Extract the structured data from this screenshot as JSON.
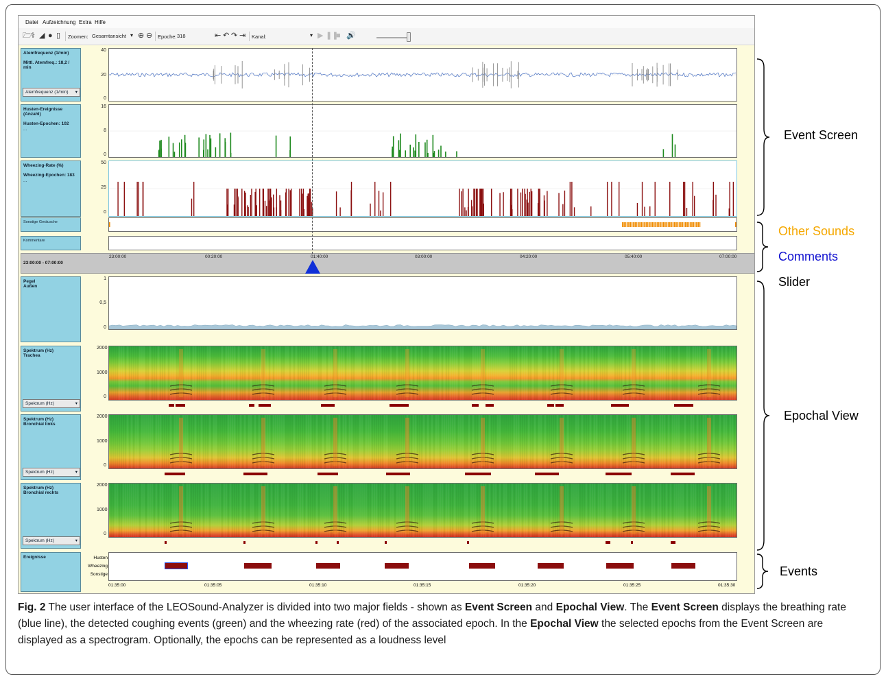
{
  "app": {
    "menu": [
      "Datei",
      "Aufzeichnung",
      "Extra",
      "Hilfe"
    ],
    "toolbar": {
      "zoom_label": "Zoomen:",
      "zoom_value": "Gesamtansicht",
      "epoch_label": "Epoche:",
      "epoch_value": "318",
      "channel_label": "Kanal:",
      "channel_value": ""
    }
  },
  "event_screen": {
    "respiration": {
      "title": "Atemfrequenz (1/min)",
      "stat": "Mittl. Atemfreq.: 18,2 / min",
      "select": "Atemfrequenz (1/min)",
      "yticks": [
        "40",
        "20",
        "0"
      ],
      "color": "#4a72c4"
    },
    "cough": {
      "title": "Husten-Ereignisse (Anzahl)",
      "stat": "Husten-Epochen: 102",
      "dots": "...",
      "yticks": [
        "16",
        "8",
        "0"
      ],
      "color": "#1f8a1f"
    },
    "wheezing": {
      "title": "Wheezing-Rate (%)",
      "stat": "Wheezing-Epochen: 183",
      "dots": "...",
      "yticks": [
        "50",
        "25",
        "0"
      ],
      "color": "#8b1010"
    },
    "other_sounds": {
      "title": "Sonstige Geräusche",
      "color": "#f08c00"
    },
    "comments": {
      "title": "Kommentare"
    }
  },
  "slider": {
    "range": "23:00:00 - 07:00:00",
    "times": [
      "23:00:00",
      "00:20:00",
      "01:40:00",
      "03:00:00",
      "04:20:00",
      "05:40:00",
      "07:00:00"
    ],
    "cursor_color": "#1030d8"
  },
  "epochal_view": {
    "level": {
      "title": "Pegel",
      "subtitle": "Außen",
      "yticks": [
        "1",
        "0,5",
        "0"
      ]
    },
    "spectra": [
      {
        "title": "Spektrum (Hz)",
        "subtitle": "Trachea",
        "select": "Spektrum (Hz)",
        "yticks": [
          "2000",
          "1000",
          "0"
        ]
      },
      {
        "title": "Spektrum (Hz)",
        "subtitle": "Bronchial links",
        "select": "Spektrum (Hz)",
        "yticks": [
          "2000",
          "1000",
          "0"
        ]
      },
      {
        "title": "Spektrum (Hz)",
        "subtitle": "Bronchial rechts",
        "select": "Spektrum (Hz)",
        "yticks": [
          "2000",
          "1000",
          "0"
        ]
      }
    ],
    "events": {
      "title": "Ereignisse",
      "rows": [
        "Husten",
        "Wheezing",
        "Sonstige"
      ],
      "times": [
        "01:35:00",
        "01:35:05",
        "01:35:10",
        "01:35:15",
        "01:35:20",
        "01:35:25",
        "01:35:30"
      ]
    }
  },
  "annotations": {
    "event_screen": "Event Screen",
    "other_sounds": "Other Sounds",
    "comments": "Comments",
    "slider": "Slider",
    "epochal_view": "Epochal View",
    "events": "Events",
    "colors": {
      "other_sounds": "#f5a800",
      "comments": "#1010d0",
      "default": "#000000"
    }
  },
  "caption": {
    "fig": "Fig. 2",
    "t1": " The user interface of the LEOSound-Analyzer is divided into two major fields - shown as ",
    "b1": "Event Screen",
    "t2": " and ",
    "b2": "Epochal View",
    "t3": ". The ",
    "b3": "Event Screen",
    "t4": " displays the breathing rate (blue line), the detected coughing events (green) and the wheezing rate (red) of the associated epoch. In the ",
    "b4": "Epochal View",
    "t5": " the selected epochs from the Event Screen are displayed as a spectrogram. Optionally, the epochs can be represented as a loudness level"
  }
}
